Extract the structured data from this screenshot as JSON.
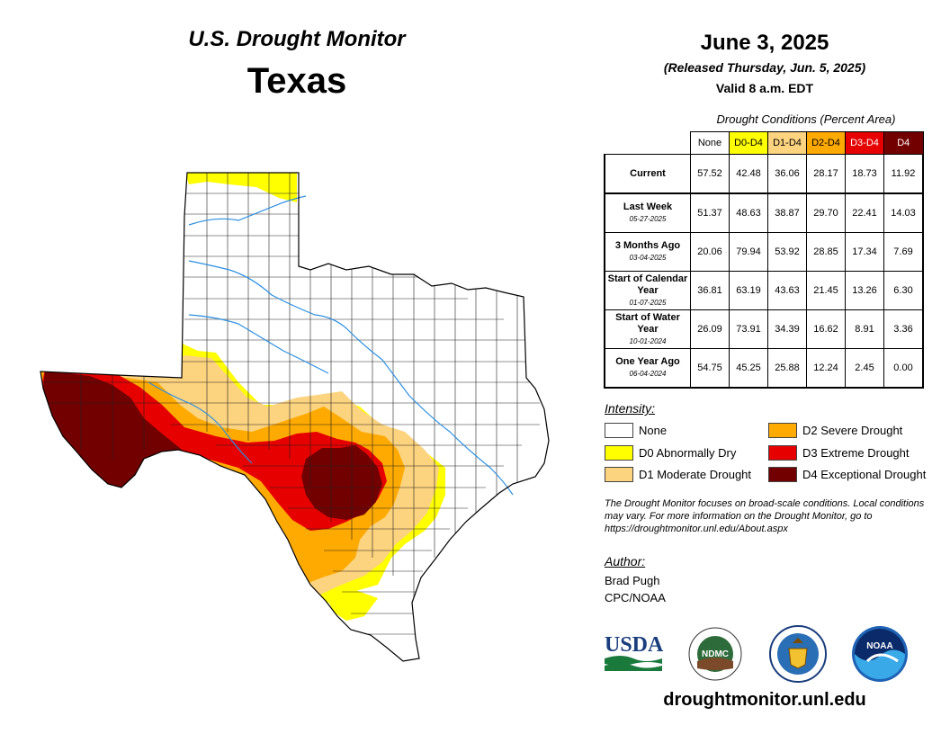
{
  "header": {
    "product": "U.S. Drought Monitor",
    "state": "Texas",
    "date": "June 3, 2025",
    "release": "(Released Thursday, Jun. 5, 2025)",
    "valid": "Valid 8 a.m. EDT"
  },
  "table": {
    "caption": "Drought Conditions (Percent Area)",
    "columns": [
      {
        "label": "None",
        "bg": "#ffffff",
        "fg": "#000000"
      },
      {
        "label": "D0-D4",
        "bg": "#ffff00",
        "fg": "#000000"
      },
      {
        "label": "D1-D4",
        "bg": "#fcd37f",
        "fg": "#000000"
      },
      {
        "label": "D2-D4",
        "bg": "#ffaa00",
        "fg": "#000000"
      },
      {
        "label": "D3-D4",
        "bg": "#e60000",
        "fg": "#ffffff"
      },
      {
        "label": "D4",
        "bg": "#730000",
        "fg": "#ffffff"
      }
    ],
    "rows": [
      {
        "label": "Current",
        "date": "",
        "values": [
          "57.52",
          "42.48",
          "36.06",
          "28.17",
          "18.73",
          "11.92"
        ]
      },
      {
        "label": "Last Week",
        "date": "05-27-2025",
        "values": [
          "51.37",
          "48.63",
          "38.87",
          "29.70",
          "22.41",
          "14.03"
        ]
      },
      {
        "label": "3 Months Ago",
        "date": "03-04-2025",
        "values": [
          "20.06",
          "79.94",
          "53.92",
          "28.85",
          "17.34",
          "7.69"
        ]
      },
      {
        "label": "Start of Calendar Year",
        "date": "01-07-2025",
        "values": [
          "36.81",
          "63.19",
          "43.63",
          "21.45",
          "13.26",
          "6.30"
        ]
      },
      {
        "label": "Start of Water Year",
        "date": "10-01-2024",
        "values": [
          "26.09",
          "73.91",
          "34.39",
          "16.62",
          "8.91",
          "3.36"
        ]
      },
      {
        "label": "One Year Ago",
        "date": "06-04-2024",
        "values": [
          "54.75",
          "45.25",
          "25.88",
          "12.24",
          "2.45",
          "0.00"
        ]
      }
    ]
  },
  "legend": {
    "title": "Intensity:",
    "items": [
      {
        "label": "None",
        "color": "#ffffff"
      },
      {
        "label": "D0 Abnormally Dry",
        "color": "#ffff00"
      },
      {
        "label": "D1 Moderate Drought",
        "color": "#fcd37f"
      },
      {
        "label": "D2 Severe Drought",
        "color": "#ffaa00"
      },
      {
        "label": "D3 Extreme Drought",
        "color": "#e60000"
      },
      {
        "label": "D4 Exceptional Drought",
        "color": "#730000"
      }
    ]
  },
  "note": "The Drought Monitor focuses on broad-scale conditions. Local conditions may vary. For more information on the Drought Monitor, go to https://droughtmonitor.unl.edu/About.aspx",
  "author": {
    "title": "Author:",
    "name": "Brad Pugh",
    "org": "CPC/NOAA"
  },
  "logos": {
    "usda": "USDA",
    "ndmc": "NDMC",
    "noaa": "NOAA"
  },
  "website": "droughtmonitor.unl.edu"
}
